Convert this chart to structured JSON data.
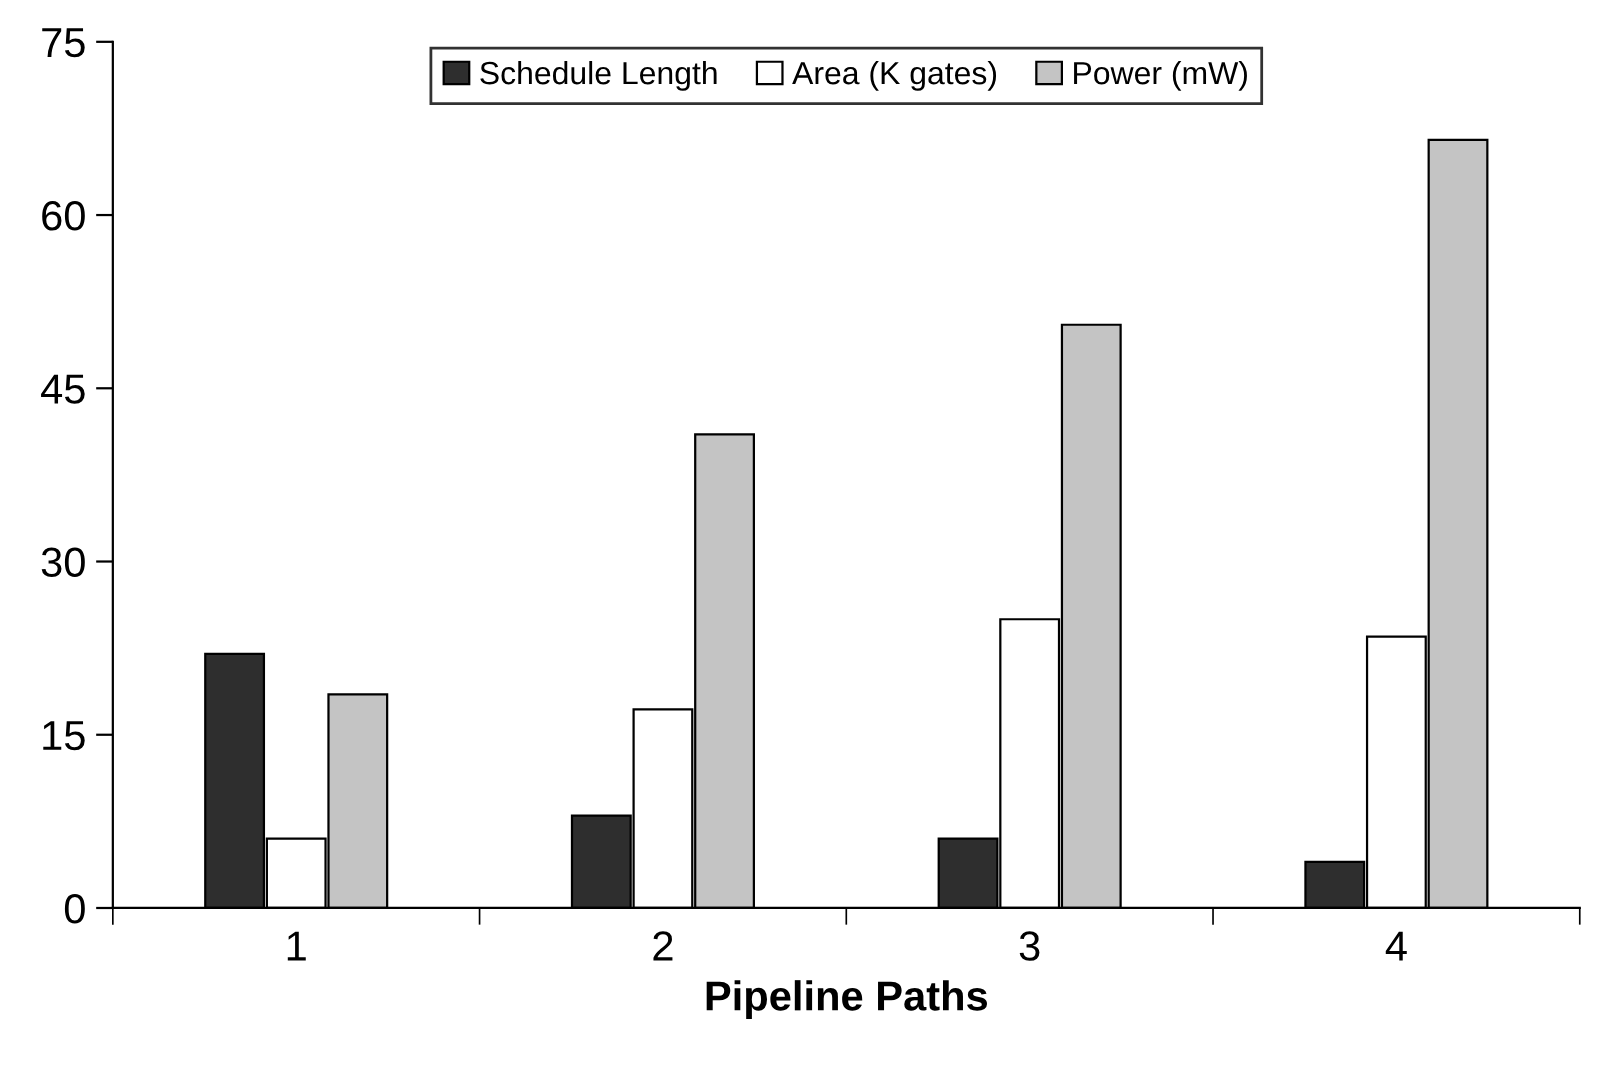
{
  "chart_data": {
    "type": "bar",
    "xlabel": "Pipeline Paths",
    "categories": [
      "1",
      "2",
      "3",
      "4"
    ],
    "series": [
      {
        "name": "Schedule Length",
        "color": "#2e2e2e",
        "values": [
          22,
          8,
          6,
          4
        ]
      },
      {
        "name": "Area (K gates)",
        "color": "#ffffff",
        "values": [
          6,
          17.2,
          25,
          23.5
        ]
      },
      {
        "name": "Power (mW)",
        "color": "#c4c4c4",
        "values": [
          18.5,
          41,
          50.5,
          66.5
        ]
      }
    ],
    "ylim": [
      0,
      75
    ],
    "yticks": [
      0,
      15,
      30,
      45,
      60,
      75
    ],
    "grid": false,
    "legend": "top"
  }
}
